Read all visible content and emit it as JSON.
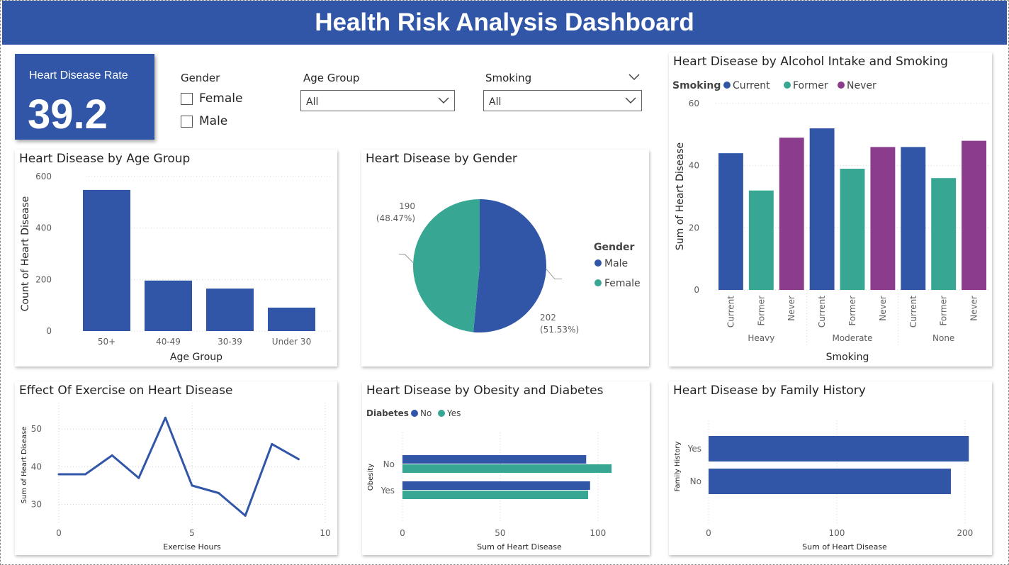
{
  "header": {
    "title": "Health Risk Analysis Dashboard"
  },
  "kpi": {
    "label": "Heart Disease Rate",
    "value": "39.2"
  },
  "slicers": {
    "gender": {
      "label": "Gender",
      "options": [
        "Female",
        "Male"
      ]
    },
    "age_group": {
      "label": "Age Group",
      "value": "All"
    },
    "smoking": {
      "label": "Smoking",
      "value": "All"
    }
  },
  "colors": {
    "blue": "#3156A8",
    "teal": "#37A794",
    "purple": "#8C3C8C",
    "header": "#3156A8"
  },
  "icons": {
    "dropdown": "chevron-down-icon"
  },
  "chart_data": [
    {
      "id": "age",
      "type": "bar",
      "title": "Heart Disease by Age Group",
      "xlabel": "Age Group",
      "ylabel": "Count of Heart Disease",
      "categories": [
        "50+",
        "40-49",
        "30-39",
        "Under 30"
      ],
      "values": [
        548,
        196,
        165,
        91
      ],
      "ylim": [
        0,
        600
      ],
      "yticks": [
        0,
        200,
        400,
        600
      ],
      "grid": true
    },
    {
      "id": "gender",
      "type": "pie",
      "title": "Heart Disease by Gender",
      "legend_title": "Gender",
      "legend_position": "right",
      "slices": [
        {
          "name": "Male",
          "value": 202,
          "label": "202",
          "pct_label": "(51.53%)"
        },
        {
          "name": "Female",
          "value": 190,
          "label": "190",
          "pct_label": "(48.47%)"
        }
      ]
    },
    {
      "id": "alcohol",
      "type": "bar",
      "title": "Heart Disease by Alcohol Intake and Smoking",
      "legend_title": "Smoking",
      "legend_position": "top-left",
      "xlabel": "Smoking",
      "ylabel": "Sum of Heart Disease",
      "groups": [
        {
          "name": "Heavy",
          "bars": [
            {
              "label": "Current",
              "value": 44
            },
            {
              "label": "Former",
              "value": 32
            },
            {
              "label": "Never",
              "value": 49
            }
          ]
        },
        {
          "name": "Moderate",
          "bars": [
            {
              "label": "Current",
              "value": 52
            },
            {
              "label": "Former",
              "value": 39
            },
            {
              "label": "Never",
              "value": 46
            }
          ]
        },
        {
          "name": "None",
          "bars": [
            {
              "label": "Current",
              "value": 46
            },
            {
              "label": "Former",
              "value": 36
            },
            {
              "label": "Never",
              "value": 48
            }
          ]
        }
      ],
      "series": [
        "Current",
        "Former",
        "Never"
      ],
      "ylim": [
        0,
        60
      ],
      "yticks": [
        0,
        20,
        40,
        60
      ],
      "grid": true
    },
    {
      "id": "exercise",
      "type": "line",
      "title": "Effect Of Exercise on Heart Disease",
      "xlabel": "Exercise Hours",
      "ylabel": "Sum of Heart Disease",
      "x": [
        0,
        1,
        2,
        3,
        4,
        5,
        6,
        7,
        8,
        9
      ],
      "y": [
        38,
        38,
        43,
        37,
        53,
        35,
        33,
        27,
        46,
        42
      ],
      "xlim": [
        0,
        10
      ],
      "ylim": [
        25,
        57
      ],
      "xticks": [
        0,
        5,
        10
      ],
      "yticks": [
        30,
        40,
        50
      ],
      "grid": true
    },
    {
      "id": "obesity",
      "type": "bar",
      "orientation": "horizontal",
      "title": "Heart Disease by Obesity and Diabetes",
      "legend_title": "Diabetes",
      "legend_position": "top-left",
      "xlabel": "Sum of Heart Disease",
      "ylabel": "Obesity",
      "categories": [
        "No",
        "Yes"
      ],
      "series": [
        {
          "name": "No",
          "values": [
            94,
            96
          ]
        },
        {
          "name": "Yes",
          "values": [
            107,
            95
          ]
        }
      ],
      "xlim": [
        0,
        120
      ],
      "xticks": [
        0,
        50,
        100
      ],
      "grid": true
    },
    {
      "id": "family",
      "type": "bar",
      "orientation": "horizontal",
      "title": "Heart Disease by Family History",
      "xlabel": "Sum of Heart Disease",
      "ylabel": "Family History",
      "categories": [
        "Yes",
        "No"
      ],
      "values": [
        203,
        189
      ],
      "xlim": [
        0,
        215
      ],
      "xticks": [
        0,
        100,
        200
      ],
      "grid": true
    }
  ]
}
